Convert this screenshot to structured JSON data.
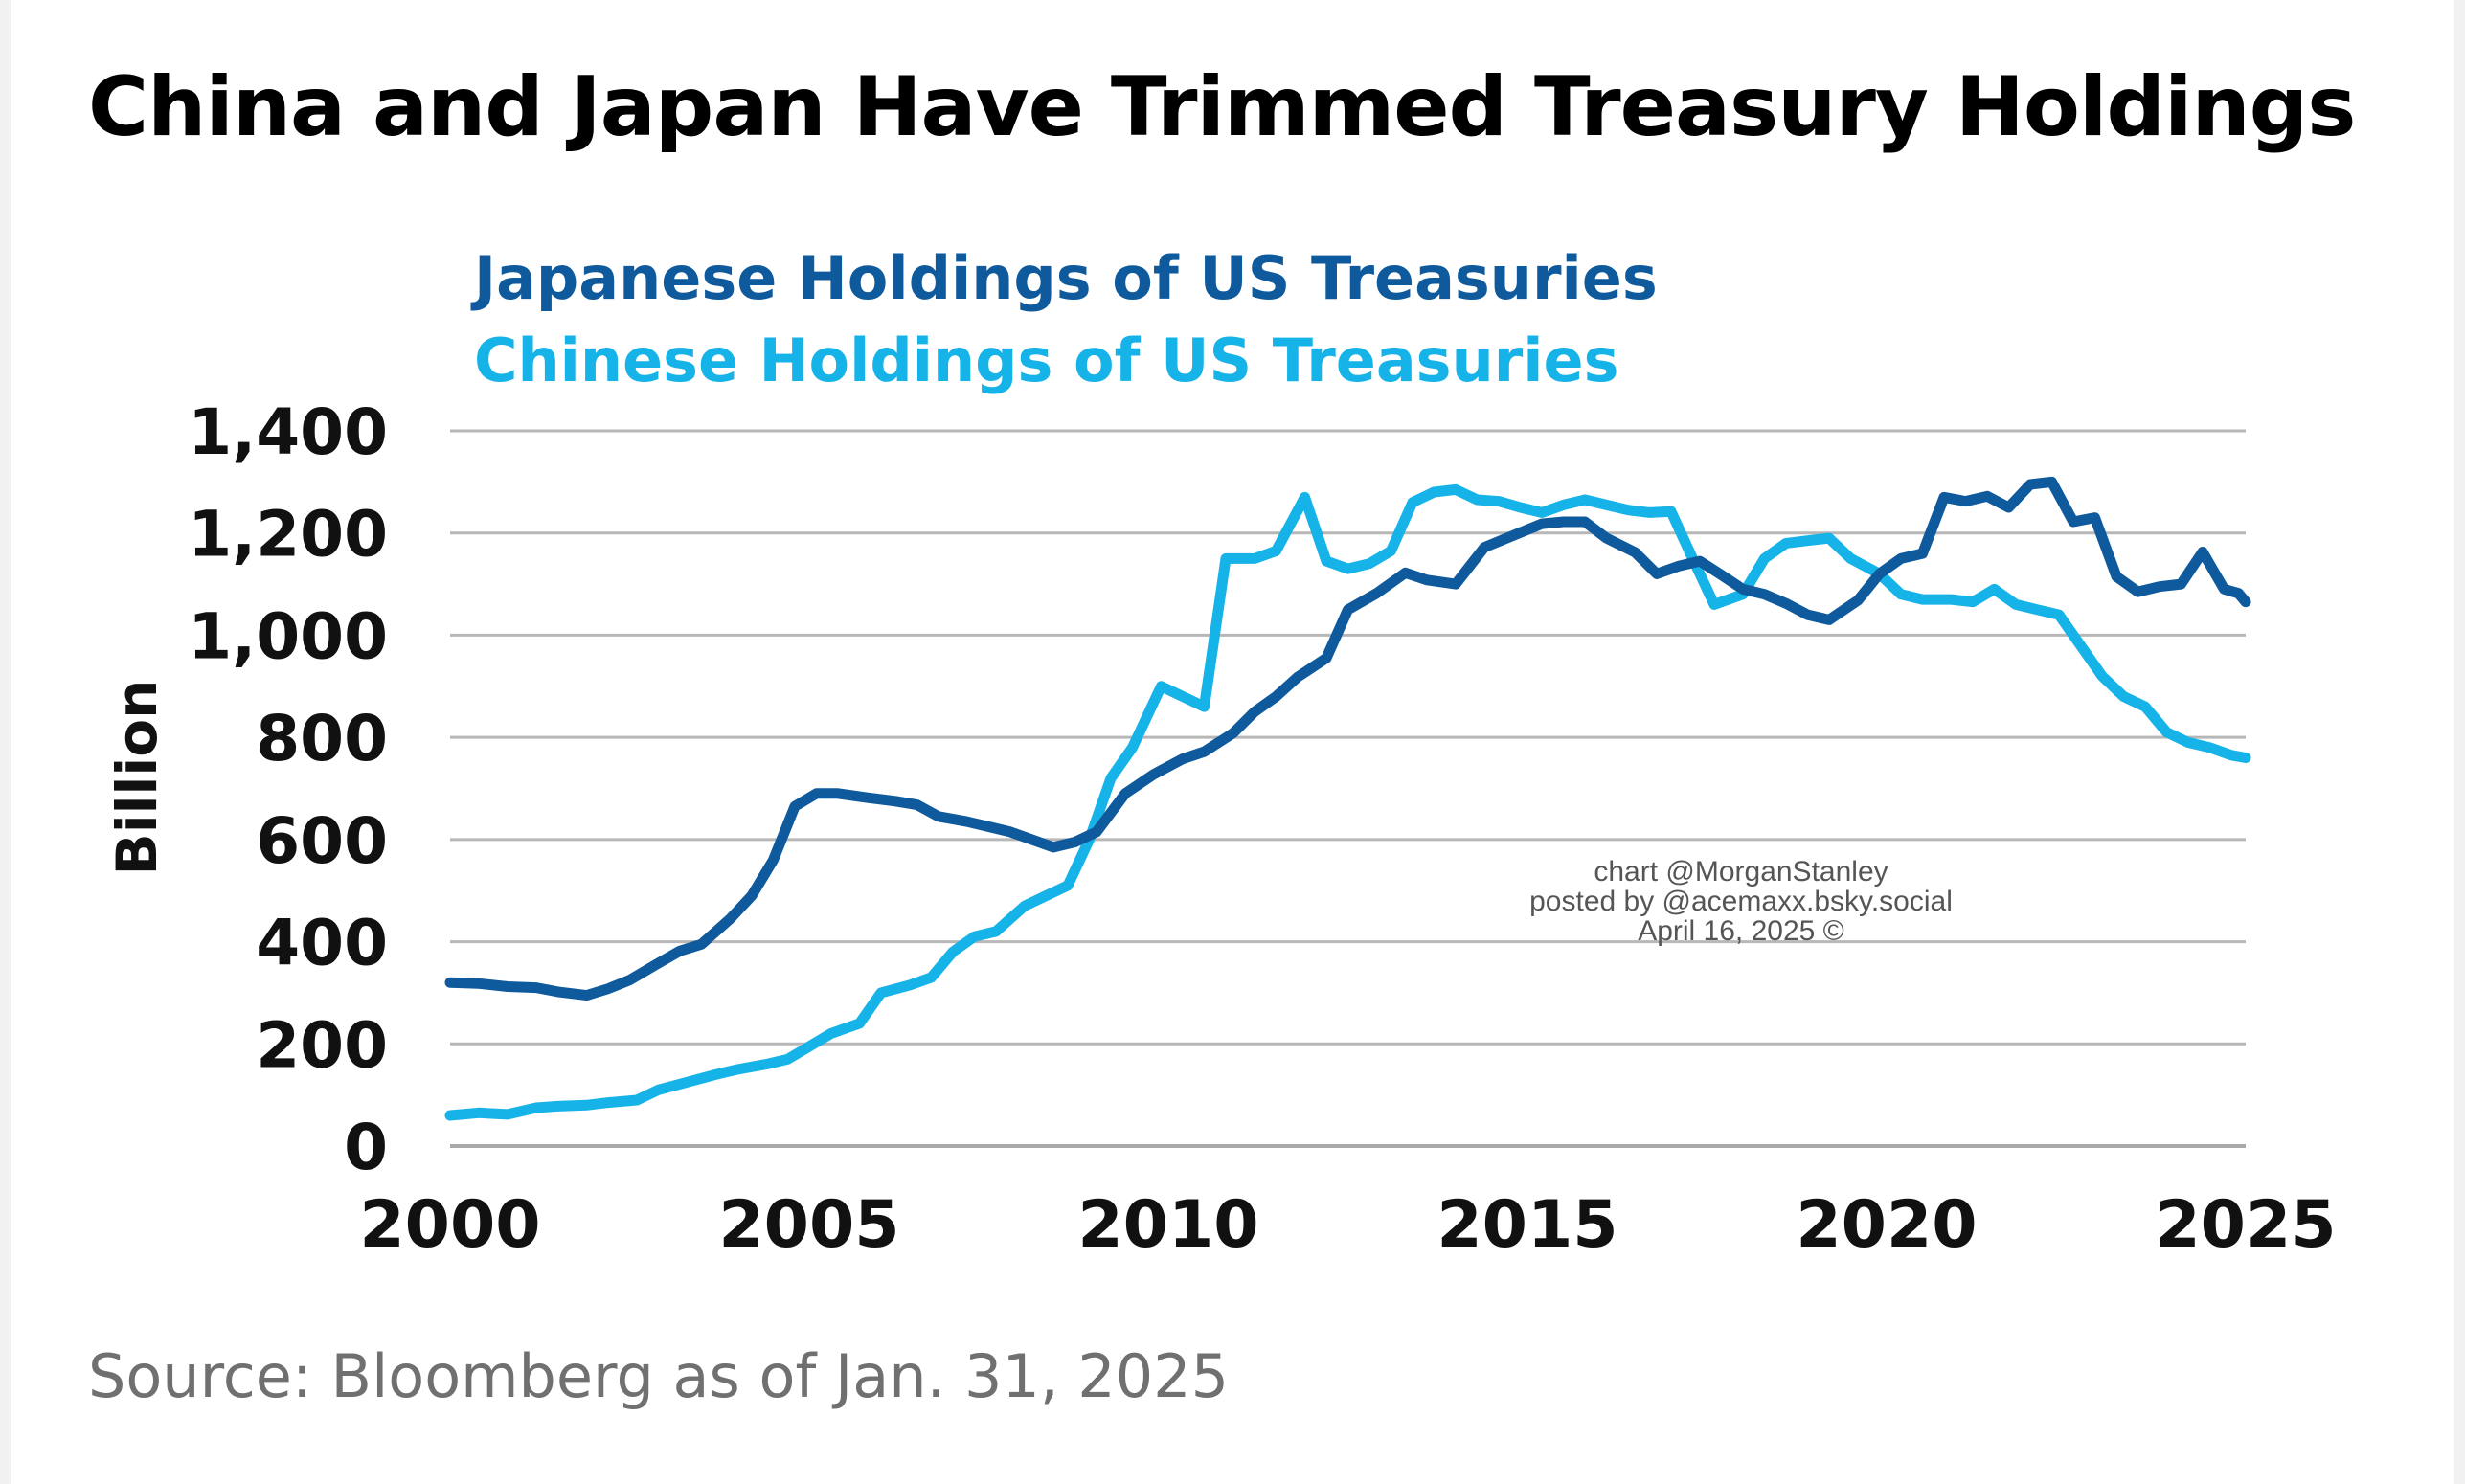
{
  "page": {
    "title": "China and Japan Have Trimmed Treasury Holdings",
    "source": "Source: Bloomberg as of Jan. 31, 2025"
  },
  "watermark": {
    "lines": [
      "chart @MorganStanley",
      "posted by @acemaxx.bsky.social",
      "April 16, 2025 ©"
    ]
  },
  "colors": {
    "japan": "#0f5a9c",
    "china": "#16b3e8",
    "grid": "#b7b7b7",
    "text": "#111111",
    "watermark": "#555555"
  },
  "chart_data": {
    "type": "line",
    "title": "",
    "ylabel": "Billion",
    "xlabel": "",
    "xlim": [
      2000,
      2025
    ],
    "ylim": [
      0,
      1400
    ],
    "xticks": [
      "2000",
      "2005",
      "2010",
      "2015",
      "2020",
      "2025"
    ],
    "yticks": [
      "0",
      "200",
      "400",
      "600",
      "800",
      "1,000",
      "1,200",
      "1,400"
    ],
    "grid": "horizontal",
    "legend": "top-left",
    "series": [
      {
        "name": "Japanese Holdings of US Treasuries",
        "color": "#0f5a9c",
        "x": [
          2000.0,
          2000.4,
          2000.8,
          2001.2,
          2001.5,
          2001.9,
          2002.2,
          2002.5,
          2002.9,
          2003.2,
          2003.5,
          2003.9,
          2004.2,
          2004.5,
          2004.8,
          2005.1,
          2005.4,
          2005.8,
          2006.2,
          2006.5,
          2006.8,
          2007.2,
          2007.5,
          2007.8,
          2008.1,
          2008.4,
          2008.7,
          2009.0,
          2009.4,
          2009.8,
          2010.2,
          2010.5,
          2010.9,
          2011.2,
          2011.5,
          2011.8,
          2012.2,
          2012.5,
          2012.9,
          2013.3,
          2013.6,
          2014.0,
          2014.4,
          2014.8,
          2015.2,
          2015.5,
          2015.8,
          2016.1,
          2016.5,
          2016.8,
          2017.1,
          2017.4,
          2017.7,
          2018.0,
          2018.3,
          2018.6,
          2018.9,
          2019.2,
          2019.6,
          2019.9,
          2020.2,
          2020.5,
          2020.8,
          2021.1,
          2021.4,
          2021.7,
          2022.0,
          2022.3,
          2022.6,
          2022.9,
          2023.2,
          2023.5,
          2023.8,
          2024.1,
          2024.4,
          2024.7,
          2024.9,
          2025.0
        ],
        "values": [
          320,
          318,
          312,
          310,
          302,
          295,
          308,
          325,
          358,
          382,
          395,
          445,
          490,
          560,
          665,
          690,
          690,
          682,
          675,
          668,
          645,
          635,
          625,
          615,
          600,
          585,
          595,
          615,
          690,
          728,
          758,
          772,
          808,
          850,
          880,
          918,
          955,
          1050,
          1082,
          1122,
          1108,
          1100,
          1172,
          1195,
          1218,
          1222,
          1222,
          1190,
          1162,
          1120,
          1135,
          1145,
          1118,
          1090,
          1080,
          1062,
          1040,
          1030,
          1068,
          1120,
          1150,
          1160,
          1270,
          1262,
          1272,
          1250,
          1295,
          1300,
          1222,
          1230,
          1115,
          1085,
          1095,
          1100,
          1163,
          1090,
          1082,
          1065
        ]
      },
      {
        "name": "Chinese Holdings of US Treasuries",
        "color": "#16b3e8",
        "x": [
          2000.0,
          2000.4,
          2000.8,
          2001.2,
          2001.5,
          2001.9,
          2002.2,
          2002.6,
          2002.9,
          2003.3,
          2003.7,
          2004.0,
          2004.4,
          2004.7,
          2005.0,
          2005.3,
          2005.7,
          2006.0,
          2006.4,
          2006.7,
          2007.0,
          2007.3,
          2007.6,
          2008.0,
          2008.3,
          2008.6,
          2008.9,
          2009.2,
          2009.5,
          2009.9,
          2010.2,
          2010.5,
          2010.8,
          2011.2,
          2011.5,
          2011.9,
          2012.2,
          2012.5,
          2012.8,
          2013.1,
          2013.4,
          2013.7,
          2014.0,
          2014.3,
          2014.6,
          2014.9,
          2015.2,
          2015.5,
          2015.8,
          2016.1,
          2016.4,
          2016.7,
          2017.0,
          2017.3,
          2017.6,
          2018.0,
          2018.3,
          2018.6,
          2018.9,
          2019.2,
          2019.5,
          2019.9,
          2020.2,
          2020.5,
          2020.9,
          2021.2,
          2021.5,
          2021.8,
          2022.1,
          2022.4,
          2022.7,
          2023.0,
          2023.3,
          2023.6,
          2023.9,
          2024.2,
          2024.5,
          2024.8,
          2025.0
        ],
        "values": [
          60,
          65,
          62,
          75,
          78,
          80,
          85,
          90,
          110,
          125,
          140,
          150,
          160,
          170,
          195,
          220,
          240,
          300,
          315,
          330,
          380,
          410,
          420,
          470,
          490,
          510,
          600,
          720,
          780,
          900,
          880,
          860,
          1150,
          1150,
          1165,
          1270,
          1145,
          1130,
          1140,
          1165,
          1260,
          1280,
          1285,
          1265,
          1262,
          1250,
          1240,
          1255,
          1265,
          1255,
          1245,
          1240,
          1242,
          1150,
          1060,
          1080,
          1150,
          1180,
          1185,
          1190,
          1150,
          1120,
          1080,
          1070,
          1070,
          1065,
          1090,
          1060,
          1050,
          1040,
          980,
          920,
          880,
          860,
          810,
          790,
          780,
          765,
          760
        ]
      }
    ]
  }
}
